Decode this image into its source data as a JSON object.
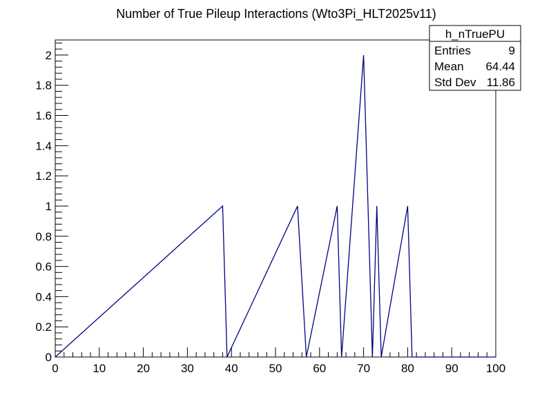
{
  "chart_data": {
    "type": "bar",
    "title": "Number of True Pileup Interactions (Wto3Pi_HLT2025v11)",
    "xlabel": "",
    "ylabel": "",
    "xlim": [
      0,
      100
    ],
    "ylim": [
      0,
      2.1
    ],
    "bin_width": 1,
    "grid": false,
    "line_color": "#000080",
    "x_ticks": [
      0,
      10,
      20,
      30,
      40,
      50,
      60,
      70,
      80,
      90,
      100
    ],
    "y_ticks": [
      0,
      0.2,
      0.4,
      0.6,
      0.8,
      1,
      1.2,
      1.4,
      1.6,
      1.8,
      2
    ],
    "bins": [
      {
        "low": 38,
        "value": 1
      },
      {
        "low": 55,
        "value": 1
      },
      {
        "low": 56,
        "value": 1
      },
      {
        "low": 64,
        "value": 1
      },
      {
        "low": 70,
        "value": 2
      },
      {
        "low": 71,
        "value": 1
      },
      {
        "low": 73,
        "value": 1
      },
      {
        "low": 80,
        "value": 1
      }
    ]
  },
  "stats_box": {
    "name": "h_nTruePU",
    "placement": "top-right",
    "rows": [
      {
        "label": "Entries",
        "value": "9"
      },
      {
        "label": "Mean",
        "value": "64.44"
      },
      {
        "label": "Std Dev",
        "value": "11.86"
      }
    ]
  }
}
